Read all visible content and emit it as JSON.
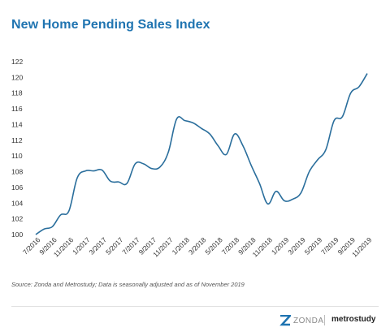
{
  "title": "New Home Pending Sales Index",
  "source_note": "Source: Zonda and Metrostudy; Data is seasonally adjusted and as of November 2019",
  "logos": {
    "zonda": "ZONDA",
    "zonda_mark": "®",
    "metrostudy": "metrostudy"
  },
  "colors": {
    "title": "#1f74b1",
    "line": "#2a6e9c",
    "zonda_mark": "#1f74b1"
  },
  "chart_data": {
    "type": "line",
    "title": "New Home Pending Sales Index",
    "xlabel": "",
    "ylabel": "",
    "ylim": [
      100,
      122
    ],
    "yticks": [
      100,
      102,
      104,
      106,
      108,
      110,
      112,
      114,
      116,
      118,
      120,
      122
    ],
    "grid": false,
    "legend": "none",
    "x_tick_labels": [
      "7/2016",
      "9/2016",
      "11/2016",
      "1/2017",
      "3/2017",
      "5/2017",
      "7/2017",
      "9/2017",
      "11/2017",
      "1/2018",
      "3/2018",
      "5/2018",
      "7/2018",
      "9/2018",
      "11/2018",
      "1/2019",
      "3/2019",
      "5/2019",
      "7/2019",
      "9/2019",
      "11/2019"
    ],
    "x": [
      "7/2016",
      "8/2016",
      "9/2016",
      "10/2016",
      "11/2016",
      "12/2016",
      "1/2017",
      "2/2017",
      "3/2017",
      "4/2017",
      "5/2017",
      "6/2017",
      "7/2017",
      "8/2017",
      "9/2017",
      "10/2017",
      "11/2017",
      "12/2017",
      "1/2018",
      "2/2018",
      "3/2018",
      "4/2018",
      "5/2018",
      "6/2018",
      "7/2018",
      "8/2018",
      "9/2018",
      "10/2018",
      "11/2018",
      "12/2018",
      "1/2019",
      "2/2019",
      "3/2019",
      "4/2019",
      "5/2019",
      "6/2019",
      "7/2019",
      "8/2019",
      "9/2019",
      "10/2019",
      "11/2019"
    ],
    "series": [
      {
        "values": [
          100.0,
          100.7,
          101.0,
          102.5,
          103.0,
          107.2,
          108.1,
          108.1,
          108.2,
          106.8,
          106.7,
          106.5,
          109.0,
          109.0,
          108.4,
          108.6,
          110.5,
          114.7,
          114.5,
          114.2,
          113.5,
          112.8,
          111.3,
          110.2,
          112.8,
          111.3,
          108.8,
          106.5,
          103.9,
          105.5,
          104.3,
          104.5,
          105.3,
          108.0,
          109.5,
          110.8,
          114.5,
          115.0,
          118.0,
          118.8,
          120.5
        ]
      }
    ]
  }
}
